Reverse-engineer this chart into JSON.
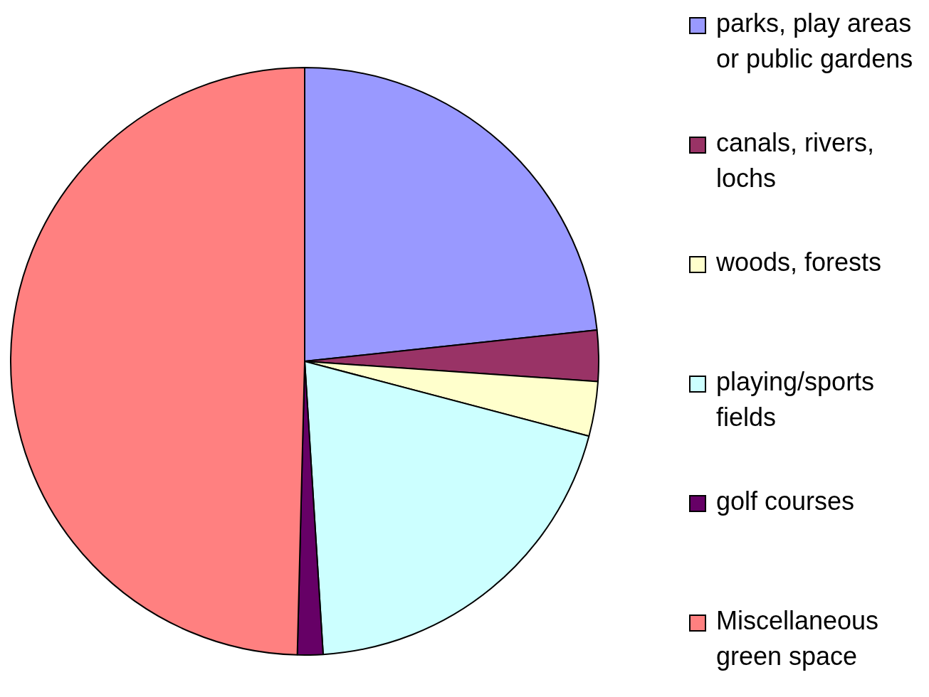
{
  "chart_data": {
    "type": "pie",
    "categories": [
      "parks, play areas or public gardens",
      "canals, rivers, lochs",
      "woods, forests",
      "playing/sports fields",
      "golf courses",
      "Miscellaneous green space"
    ],
    "values": [
      23.3,
      2.8,
      3.0,
      19.9,
      1.4,
      49.6
    ],
    "colors": [
      "#9999ff",
      "#993366",
      "#ffffcc",
      "#ccffff",
      "#660066",
      "#ff8080"
    ],
    "legend": "right"
  }
}
